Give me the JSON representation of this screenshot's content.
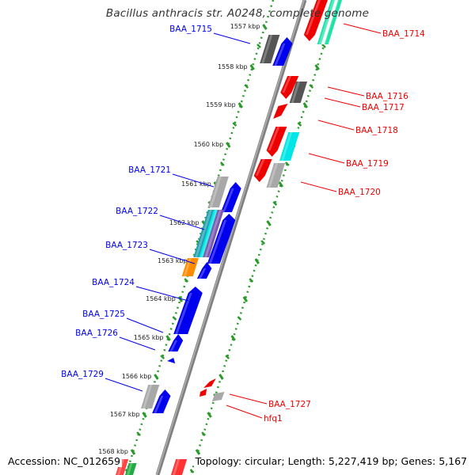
{
  "title": "Bacillus anthracis str. A0248, complete genome",
  "footer": {
    "accession": "Accession: NC_012659",
    "summary": "Topology: circular; Length: 5,227,419 bp; Genes: 5,167"
  },
  "colors": {
    "forward": "#0000ee",
    "reverse": "#ee0000",
    "gray": "#a8a8a8",
    "dark_gray": "#555555",
    "cyan": "#00e5e5",
    "teal": "#00c08a",
    "orange": "#ff8c00",
    "tick": "#2a9a2a",
    "backbone": "#808080"
  },
  "tick_labels": [
    "1557 kbp",
    "1558 kbp",
    "1559 kbp",
    "1560 kbp",
    "1561 kbp",
    "1562 kbp",
    "1563 kbp",
    "1564 kbp",
    "1565 kbp",
    "1566 kbp",
    "1567 kbp",
    "1568 kbp"
  ],
  "genes_left": [
    {
      "name": "BAA_1715"
    },
    {
      "name": "BAA_1721"
    },
    {
      "name": "BAA_1722"
    },
    {
      "name": "BAA_1723"
    },
    {
      "name": "BAA_1724"
    },
    {
      "name": "BAA_1725"
    },
    {
      "name": "BAA_1726"
    },
    {
      "name": "BAA_1729"
    }
  ],
  "genes_right": [
    {
      "name": "BAA_1714"
    },
    {
      "name": "BAA_1716"
    },
    {
      "name": "BAA_1717"
    },
    {
      "name": "BAA_1718"
    },
    {
      "name": "BAA_1719"
    },
    {
      "name": "BAA_1720"
    },
    {
      "name": "BAA_1727"
    },
    {
      "name": "hfq1"
    }
  ]
}
